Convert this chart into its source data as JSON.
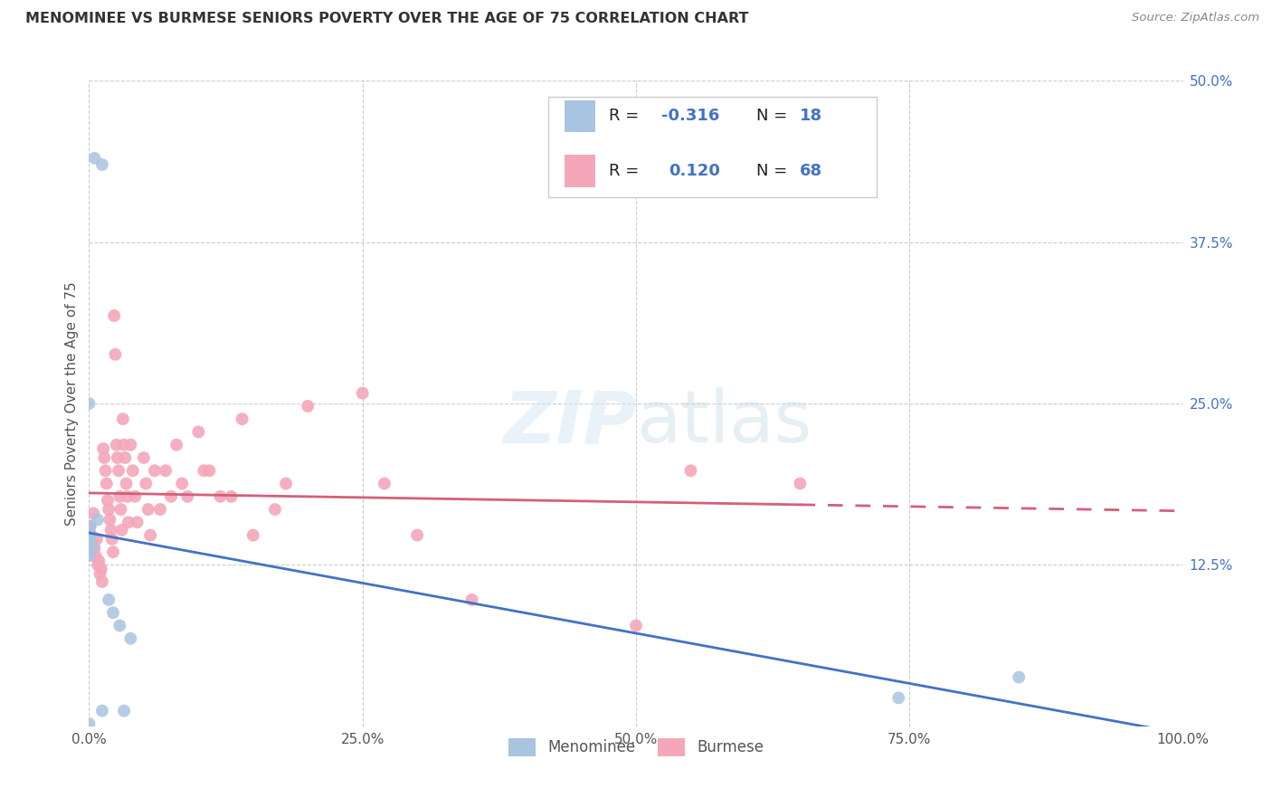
{
  "title": "MENOMINEE VS BURMESE SENIORS POVERTY OVER THE AGE OF 75 CORRELATION CHART",
  "source": "Source: ZipAtlas.com",
  "ylabel": "Seniors Poverty Over the Age of 75",
  "xlim": [
    0.0,
    1.0
  ],
  "ylim": [
    0.0,
    0.5
  ],
  "xticks": [
    0.0,
    0.25,
    0.5,
    0.75,
    1.0
  ],
  "xticklabels": [
    "0.0%",
    "25.0%",
    "50.0%",
    "75.0%",
    "100.0%"
  ],
  "yticks": [
    0.0,
    0.125,
    0.25,
    0.375,
    0.5
  ],
  "yticklabels": [
    "",
    "12.5%",
    "25.0%",
    "37.5%",
    "50.0%"
  ],
  "menominee_color": "#a8c4e0",
  "burmese_color": "#f4a7b9",
  "menominee_line_color": "#4472c4",
  "burmese_line_color": "#d4607a",
  "R_menominee": -0.316,
  "N_menominee": 18,
  "R_burmese": 0.12,
  "N_burmese": 68,
  "watermark_zip": "ZIP",
  "watermark_atlas": "atlas",
  "menominee_x": [
    0.005,
    0.012,
    0.0,
    0.008,
    0.001,
    0.002,
    0.001,
    0.003,
    0.0,
    0.018,
    0.022,
    0.028,
    0.038,
    0.032,
    0.85,
    0.74,
    0.012,
    0.0
  ],
  "menominee_y": [
    0.44,
    0.435,
    0.25,
    0.16,
    0.155,
    0.148,
    0.145,
    0.138,
    0.132,
    0.098,
    0.088,
    0.078,
    0.068,
    0.012,
    0.038,
    0.022,
    0.012,
    0.002
  ],
  "burmese_x": [
    0.001,
    0.002,
    0.003,
    0.004,
    0.005,
    0.006,
    0.007,
    0.008,
    0.009,
    0.01,
    0.011,
    0.012,
    0.013,
    0.014,
    0.015,
    0.016,
    0.017,
    0.018,
    0.019,
    0.02,
    0.021,
    0.022,
    0.023,
    0.024,
    0.025,
    0.026,
    0.027,
    0.028,
    0.029,
    0.03,
    0.031,
    0.032,
    0.033,
    0.034,
    0.035,
    0.036,
    0.038,
    0.04,
    0.042,
    0.044,
    0.05,
    0.052,
    0.054,
    0.056,
    0.06,
    0.065,
    0.07,
    0.075,
    0.08,
    0.085,
    0.09,
    0.1,
    0.105,
    0.11,
    0.12,
    0.13,
    0.14,
    0.15,
    0.17,
    0.18,
    0.2,
    0.25,
    0.27,
    0.3,
    0.35,
    0.5,
    0.55,
    0.65
  ],
  "burmese_y": [
    0.155,
    0.148,
    0.142,
    0.165,
    0.138,
    0.132,
    0.145,
    0.125,
    0.128,
    0.118,
    0.122,
    0.112,
    0.215,
    0.208,
    0.198,
    0.188,
    0.175,
    0.168,
    0.16,
    0.152,
    0.145,
    0.135,
    0.318,
    0.288,
    0.218,
    0.208,
    0.198,
    0.178,
    0.168,
    0.152,
    0.238,
    0.218,
    0.208,
    0.188,
    0.178,
    0.158,
    0.218,
    0.198,
    0.178,
    0.158,
    0.208,
    0.188,
    0.168,
    0.148,
    0.198,
    0.168,
    0.198,
    0.178,
    0.218,
    0.188,
    0.178,
    0.228,
    0.198,
    0.198,
    0.178,
    0.178,
    0.238,
    0.148,
    0.168,
    0.188,
    0.248,
    0.258,
    0.188,
    0.148,
    0.098,
    0.078,
    0.198,
    0.188
  ]
}
